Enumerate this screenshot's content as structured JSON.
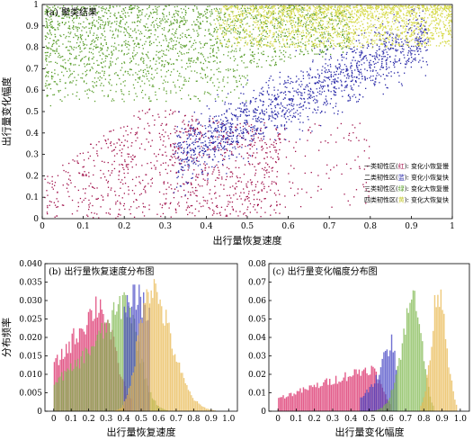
{
  "chart_data": [
    {
      "id": "a",
      "type": "scatter",
      "title": "(a) 聚类结果",
      "xlabel": "出行量恢复速度",
      "ylabel": "出行量变化幅度",
      "xlim": [
        0,
        1
      ],
      "ylim": [
        0,
        1
      ],
      "xticks": [
        "0",
        "0.1",
        "0.2",
        "0.3",
        "0.4",
        "0.5",
        "0.6",
        "0.7",
        "0.8",
        "0.9",
        "1"
      ],
      "yticks": [
        "0",
        "0.1",
        "0.2",
        "0.3",
        "0.4",
        "0.5",
        "0.6",
        "0.7",
        "0.8",
        "0.9",
        "1"
      ],
      "legend_position": "bottom-right",
      "legend": [
        {
          "pre": "一类韧性区(",
          "color_word": "红",
          "post": "): 变化小恢复慢",
          "color": "#a0104a"
        },
        {
          "pre": "二类韧性区(",
          "color_word": "蓝",
          "post": "): 变化小恢复快",
          "color": "#2a2aa8"
        },
        {
          "pre": "三类韧性区(",
          "color_word": "绿",
          "post": "): 变化大恢复慢",
          "color": "#5a9e2c"
        },
        {
          "pre": "四类韧性区(",
          "color_word": "黄",
          "post": "): 变化大恢复快",
          "color": "#c8cc3a"
        }
      ],
      "clusters": [
        {
          "name": "一类韧性区",
          "color": "#a0104a",
          "region": "lower-left, x 0–0.55, y 0–0.55"
        },
        {
          "name": "二类韧性区",
          "color": "#2a2aa8",
          "region": "diagonal band, x 0.35–0.95, y 0.25–0.85"
        },
        {
          "name": "三类韧性区",
          "color": "#5a9e2c",
          "region": "upper-left, x 0–0.7, y 0.5–1.0"
        },
        {
          "name": "四类韧性区",
          "color": "#d6da4a",
          "region": "top-right, x 0.45–1.0, y 0.8–1.0"
        }
      ]
    },
    {
      "id": "b",
      "type": "bar",
      "title": "(b) 出行量恢复速度分布图",
      "xlabel": "出行量恢复速度",
      "ylabel": "分布频率",
      "xlim": [
        -0.05,
        1.05
      ],
      "ylim": [
        0,
        0.04
      ],
      "xticks": [
        "0",
        "0.1",
        "0.2",
        "0.3",
        "0.4",
        "0.5",
        "0.6",
        "0.7",
        "0.8",
        "0.9",
        "1.0"
      ],
      "yticks": [
        "0",
        "0.005",
        "0.010",
        "0.015",
        "0.020",
        "0.025",
        "0.030",
        "0.035",
        "0.040"
      ],
      "series": [
        {
          "name": "一类韧性区",
          "color": "#d81f5e",
          "peak_x": 0.25,
          "peak_y": 0.03,
          "x_range": [
            0.0,
            0.45
          ]
        },
        {
          "name": "三类韧性区",
          "color": "#7ab648",
          "peak_x": 0.4,
          "peak_y": 0.031,
          "x_range": [
            0.0,
            0.65
          ]
        },
        {
          "name": "二类韧性区",
          "color": "#3a3ac0",
          "peak_x": 0.47,
          "peak_y": 0.033,
          "x_range": [
            0.4,
            0.55
          ]
        },
        {
          "name": "四类韧性区",
          "color": "#e8b64a",
          "peak_x": 0.54,
          "peak_y": 0.035,
          "x_range": [
            0.35,
            0.92
          ]
        }
      ]
    },
    {
      "id": "c",
      "type": "bar",
      "title": "(c) 出行量变化幅度分布图",
      "xlabel": "出行量变化幅度",
      "ylabel": "",
      "xlim": [
        -0.05,
        1.05
      ],
      "ylim": [
        0,
        0.08
      ],
      "xticks": [
        "0",
        "0.1",
        "0.2",
        "0.3",
        "0.4",
        "0.5",
        "0.6",
        "0.7",
        "0.8",
        "0.9",
        "1.0"
      ],
      "yticks": [
        "0",
        "0.01",
        "0.02",
        "0.03",
        "0.04",
        "0.05",
        "0.06",
        "0.07",
        "0.08"
      ],
      "series": [
        {
          "name": "一类韧性区",
          "color": "#d81f5e",
          "peak_x": 0.45,
          "peak_y": 0.024,
          "x_range": [
            0.0,
            0.62
          ]
        },
        {
          "name": "二类韧性区",
          "color": "#3a3ac0",
          "peak_x": 0.62,
          "peak_y": 0.04,
          "x_range": [
            0.45,
            0.65
          ]
        },
        {
          "name": "三类韧性区",
          "color": "#7ab648",
          "peak_x": 0.75,
          "peak_y": 0.064,
          "x_range": [
            0.5,
            0.85
          ]
        },
        {
          "name": "四类韧性区",
          "color": "#e8b64a",
          "peak_x": 0.88,
          "peak_y": 0.069,
          "x_range": [
            0.78,
            0.98
          ]
        }
      ]
    }
  ]
}
